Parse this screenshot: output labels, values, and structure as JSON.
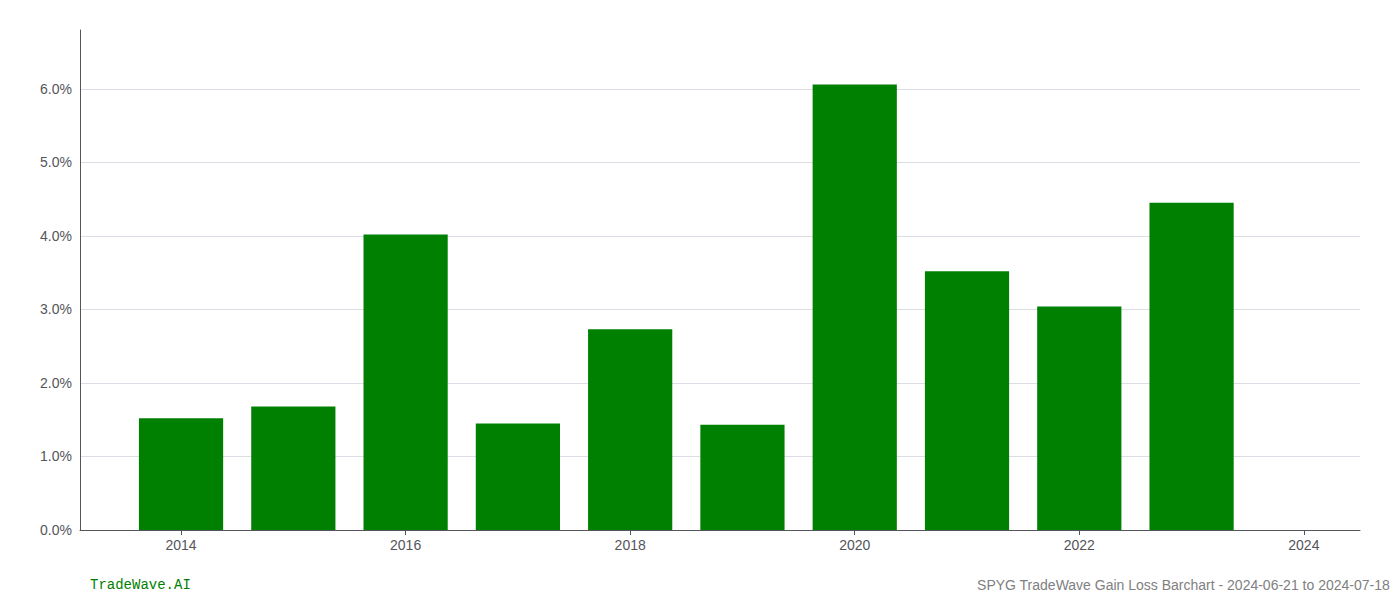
{
  "chart_data": {
    "type": "bar",
    "x": [
      2014,
      2015,
      2016,
      2017,
      2018,
      2019,
      2020,
      2021,
      2022,
      2023
    ],
    "values": [
      1.52,
      1.68,
      4.02,
      1.45,
      2.73,
      1.43,
      6.06,
      3.52,
      3.04,
      4.45
    ],
    "color": "#008000",
    "xlim": [
      2013.1,
      2024.5
    ],
    "xticks": [
      2014,
      2016,
      2018,
      2020,
      2022,
      2024
    ],
    "ylim": [
      0,
      6.8
    ],
    "yticks": [
      {
        "value": 0.0,
        "label": "0.0%"
      },
      {
        "value": 1.0,
        "label": "1.0%"
      },
      {
        "value": 2.0,
        "label": "2.0%"
      },
      {
        "value": 3.0,
        "label": "3.0%"
      },
      {
        "value": 4.0,
        "label": "4.0%"
      },
      {
        "value": 5.0,
        "label": "5.0%"
      },
      {
        "value": 6.0,
        "label": "6.0%"
      }
    ],
    "grid": true,
    "annotations": [
      {
        "text": "TradeWave.AI",
        "color": "#008000"
      },
      {
        "text": "SPYG TradeWave Gain Loss Barchart - 2024-06-21 to 2024-07-18",
        "color": "#808080"
      }
    ]
  }
}
